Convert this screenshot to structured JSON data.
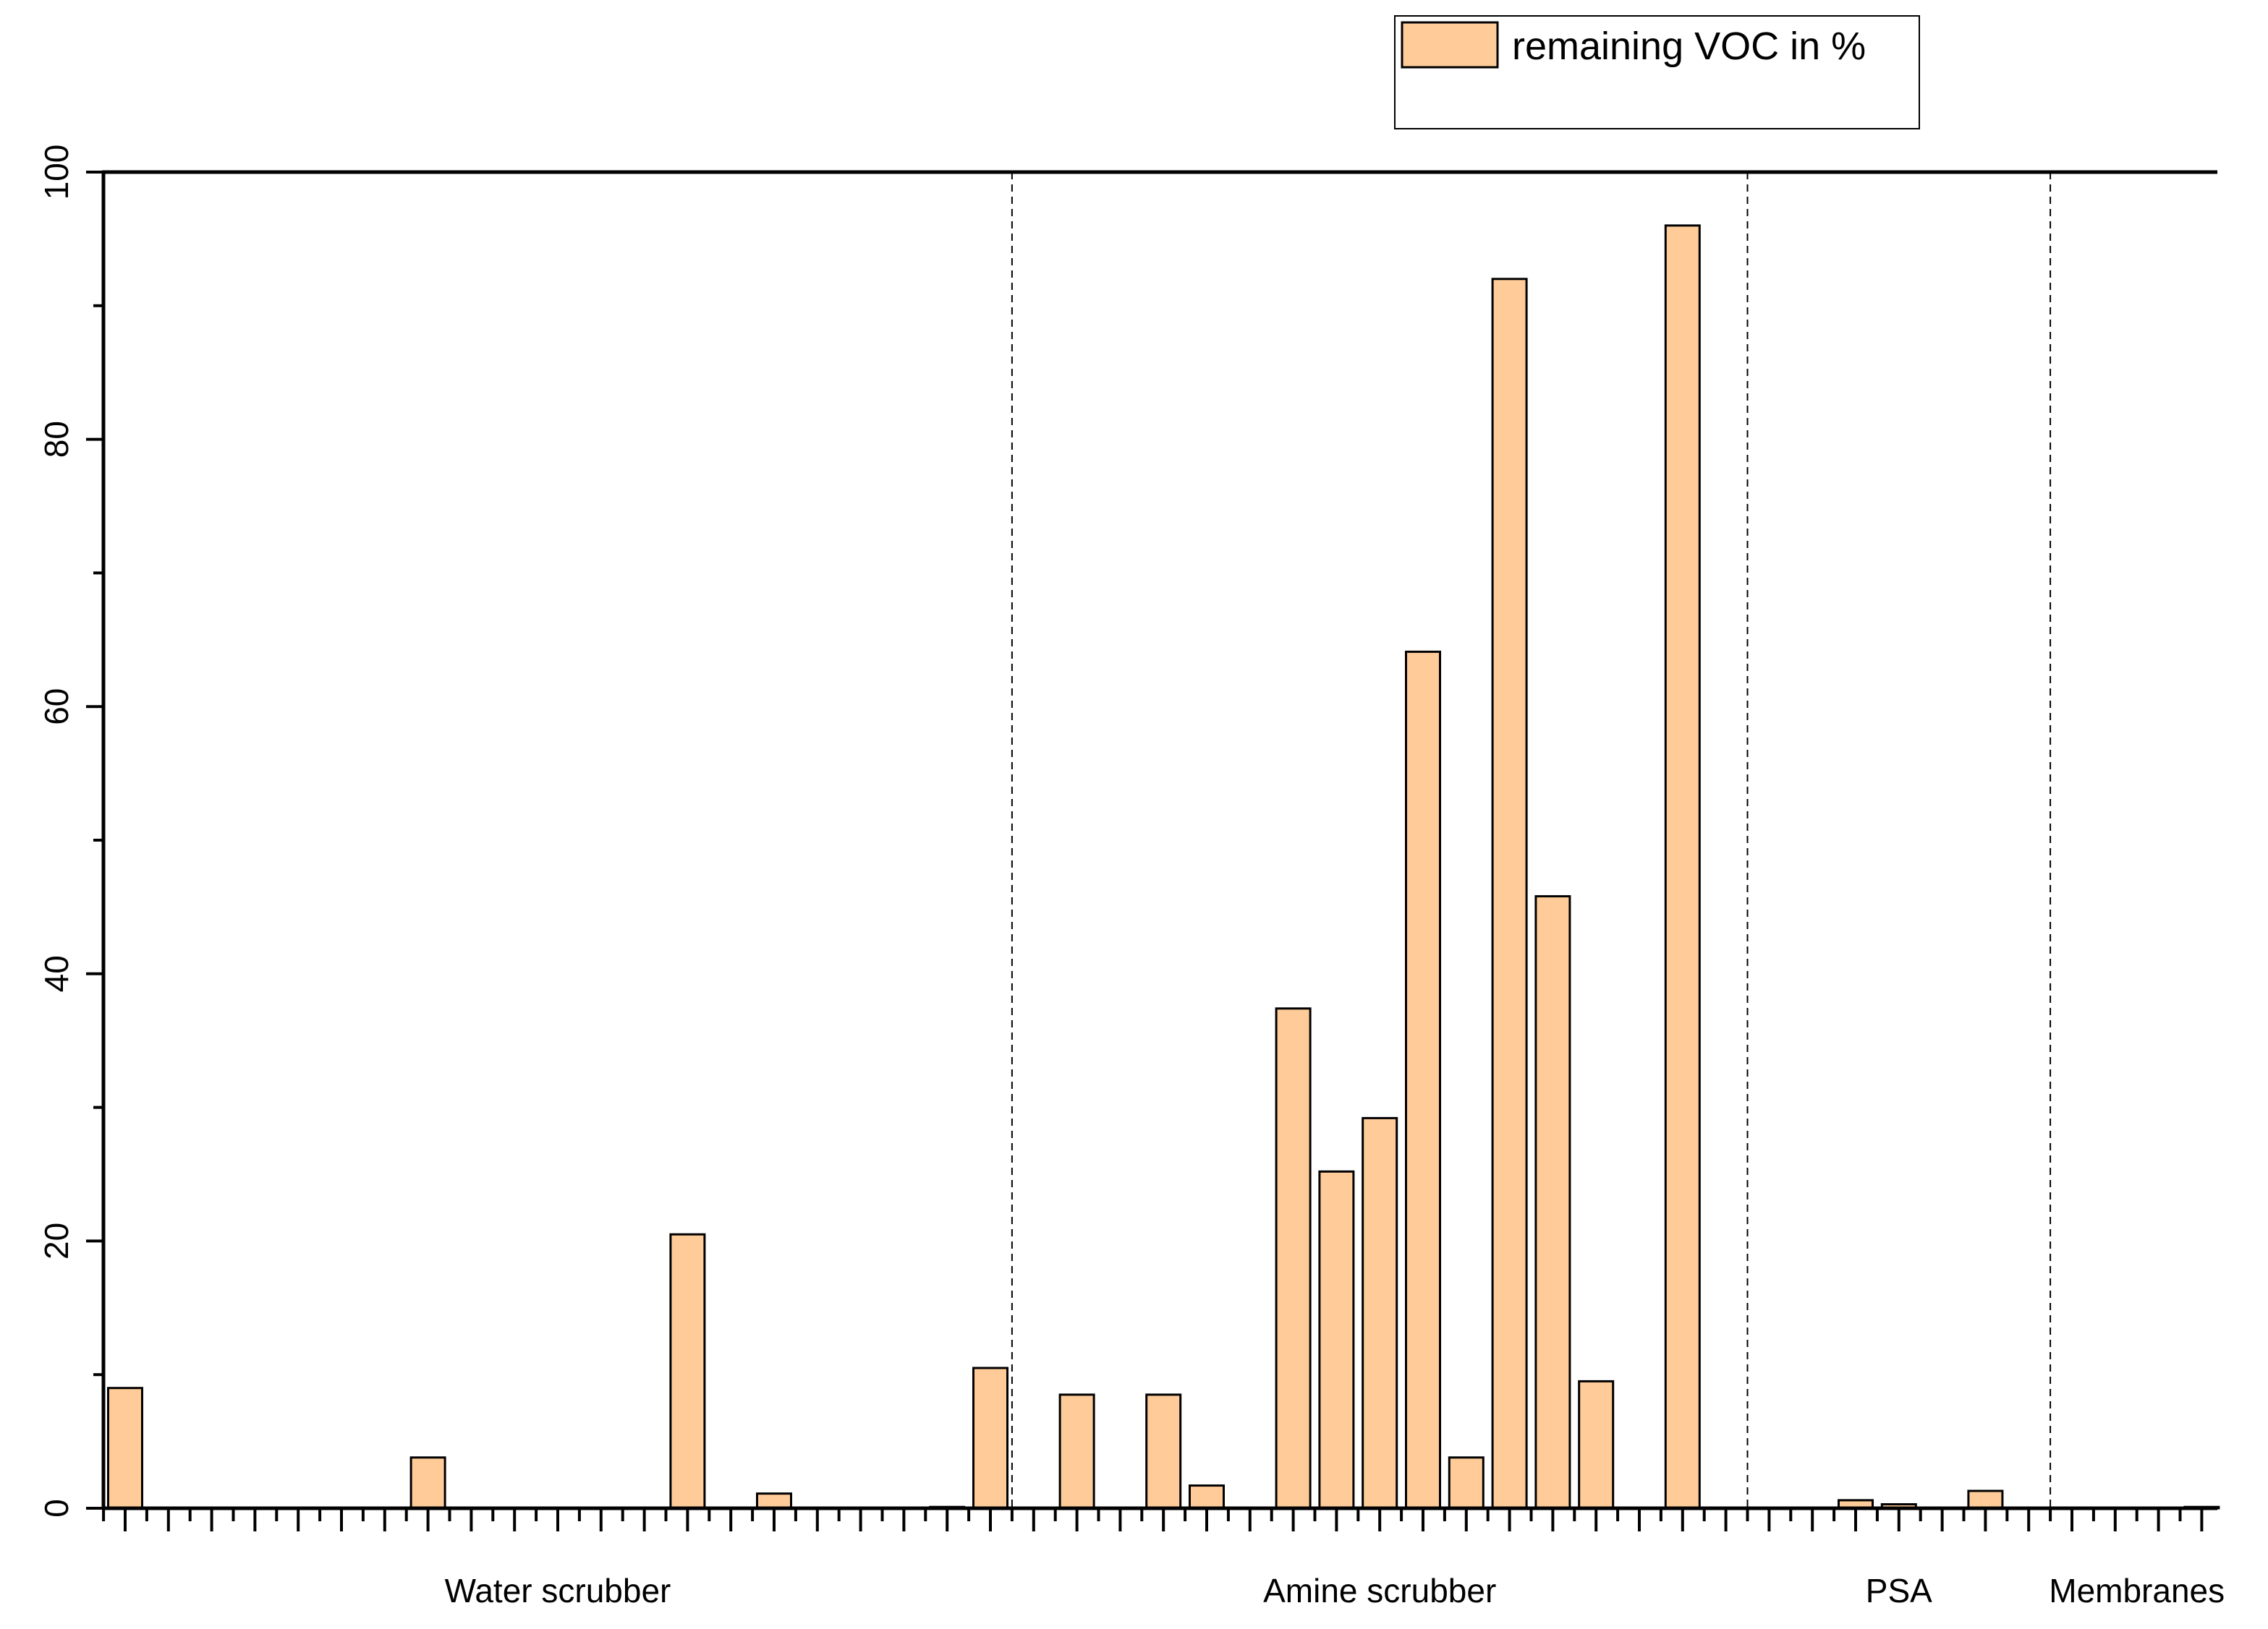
{
  "chart_data": {
    "type": "bar",
    "title": "",
    "xlabel": "",
    "ylabel": "",
    "ylim": [
      0,
      100
    ],
    "y_ticks": [
      0,
      20,
      40,
      60,
      80,
      100
    ],
    "x_positions": 49,
    "grid": false,
    "legend_placement": "top-right",
    "colors": {
      "bar_fill": "#FFCC99",
      "bar_stroke": "#000000",
      "axis": "#000000"
    },
    "series": [
      {
        "name": "remaining VOC in %",
        "values": [
          9,
          0,
          0,
          0,
          0,
          0,
          0,
          3.8,
          0,
          0,
          0,
          0,
          0,
          20.5,
          0,
          1.1,
          0,
          0,
          0,
          0.1,
          10.5,
          0,
          8.5,
          0,
          8.5,
          1.7,
          0,
          37.4,
          25.2,
          29.2,
          64.1,
          3.8,
          92,
          45.8,
          9.5,
          0,
          96,
          0,
          0,
          0,
          0.6,
          0.3,
          0,
          1.3,
          0,
          0,
          0,
          0,
          0.1
        ]
      }
    ],
    "groups": [
      {
        "label": "Water scrubber",
        "start": 0,
        "end": 20
      },
      {
        "label": "Amine scrubber",
        "start": 21,
        "end": 37
      },
      {
        "label": "PSA",
        "start": 38,
        "end": 44
      },
      {
        "label": "Membranes",
        "start": 45,
        "end": 48
      }
    ],
    "legend": {
      "entries": [
        "remaining VOC in %"
      ]
    }
  }
}
